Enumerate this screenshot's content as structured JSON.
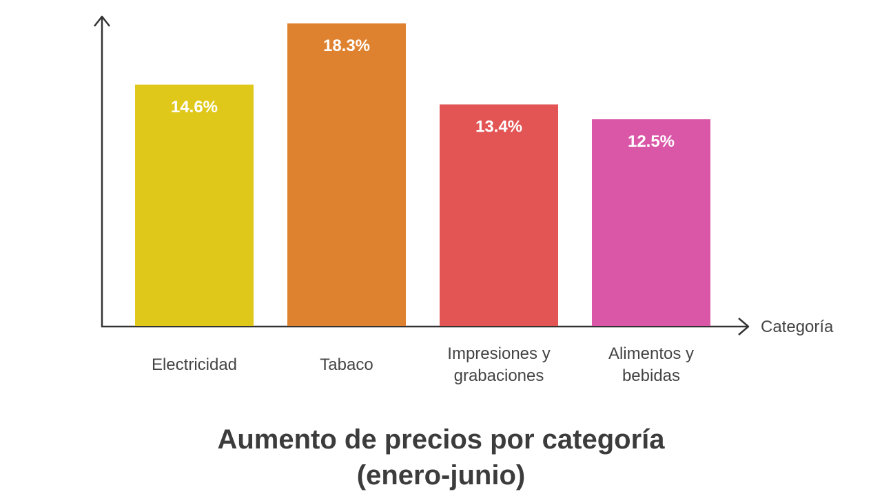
{
  "chart_data": {
    "type": "bar",
    "title": [
      "Aumento de precios por categoría",
      "(enero-junio)"
    ],
    "xlabel": "Categoría",
    "categories": [
      [
        "Electricidad"
      ],
      [
        "Tabaco"
      ],
      [
        "Impresiones y",
        "grabaciones"
      ],
      [
        "Alimentos y",
        "bebidas"
      ]
    ],
    "values": [
      14.6,
      18.3,
      13.4,
      12.5
    ],
    "data_labels": [
      "14.6%",
      "18.3%",
      "13.4%",
      "12.5%"
    ],
    "colors": [
      "#e0c81a",
      "#df8230",
      "#e35454",
      "#da57a8"
    ],
    "ylim": [
      0,
      18.3
    ],
    "grid": false,
    "legend": "none"
  }
}
